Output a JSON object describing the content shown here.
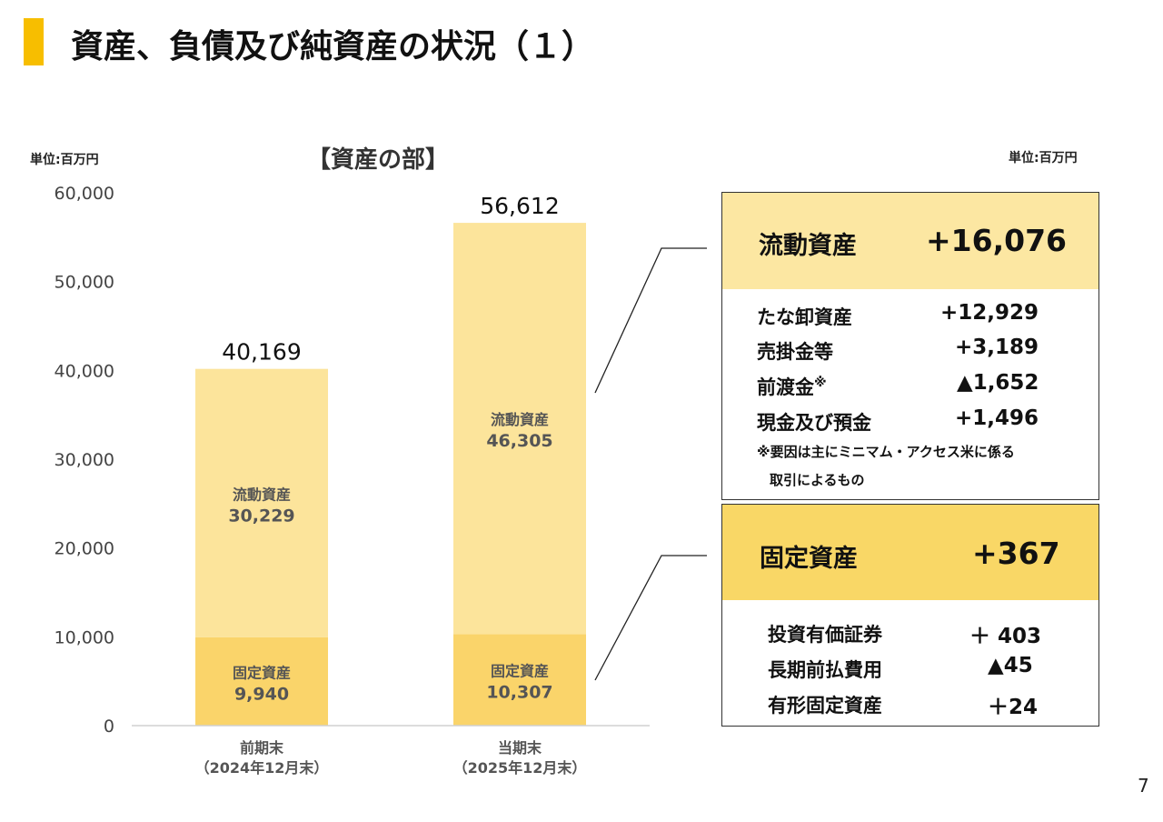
{
  "title": "資産、負債及び純資産の状況（１）",
  "unit_left": "単位:百万円",
  "unit_right": "単位:百万円",
  "section_label": "【資産の部】",
  "page_number": "7",
  "colors": {
    "accent": "#F7BE00",
    "fixed": "#FAD46A",
    "current": "#FCE49B",
    "current_box_head": "#FCE7A2",
    "fixed_box_head": "#F9D766"
  },
  "chart_data": {
    "type": "bar",
    "stacked": true,
    "ylim": [
      0,
      60000
    ],
    "yticks": [
      "0",
      "10,000",
      "20,000",
      "30,000",
      "40,000",
      "50,000",
      "60,000"
    ],
    "ytick_values": [
      0,
      10000,
      20000,
      30000,
      40000,
      50000,
      60000
    ],
    "categories": [
      {
        "line1": "前期末",
        "line2": "（2024年12月末）"
      },
      {
        "line1": "当期末",
        "line2": "（2025年12月末）"
      }
    ],
    "series": [
      {
        "name": "固定資産",
        "values": [
          9940,
          10307
        ],
        "labels": [
          "9,940",
          "10,307"
        ]
      },
      {
        "name": "流動資産",
        "values": [
          30229,
          46305
        ],
        "labels": [
          "30,229",
          "46,305"
        ]
      }
    ],
    "totals": [
      40169,
      56612
    ],
    "total_labels": [
      "40,169",
      "56,612"
    ]
  },
  "current_assets_box": {
    "label": "流動資産",
    "value": "+16,076",
    "items": [
      {
        "label": "たな卸資産",
        "value": "+12,929"
      },
      {
        "label": "売掛金等",
        "value": "+3,189"
      },
      {
        "label": "前渡金",
        "sup": "※",
        "value": "▲1,652"
      },
      {
        "label": "現金及び預金",
        "value": "+1,496"
      }
    ],
    "note_line1": "※要因は主にミニマム・アクセス米に係る",
    "note_line2": "取引によるもの"
  },
  "fixed_assets_box": {
    "label": "固定資産",
    "value": "+367",
    "items": [
      {
        "label": "投資有価証券",
        "value": "＋ 403"
      },
      {
        "label": "長期前払費用",
        "value": "▲45"
      },
      {
        "label": "有形固定資産",
        "value": "＋24"
      }
    ]
  }
}
